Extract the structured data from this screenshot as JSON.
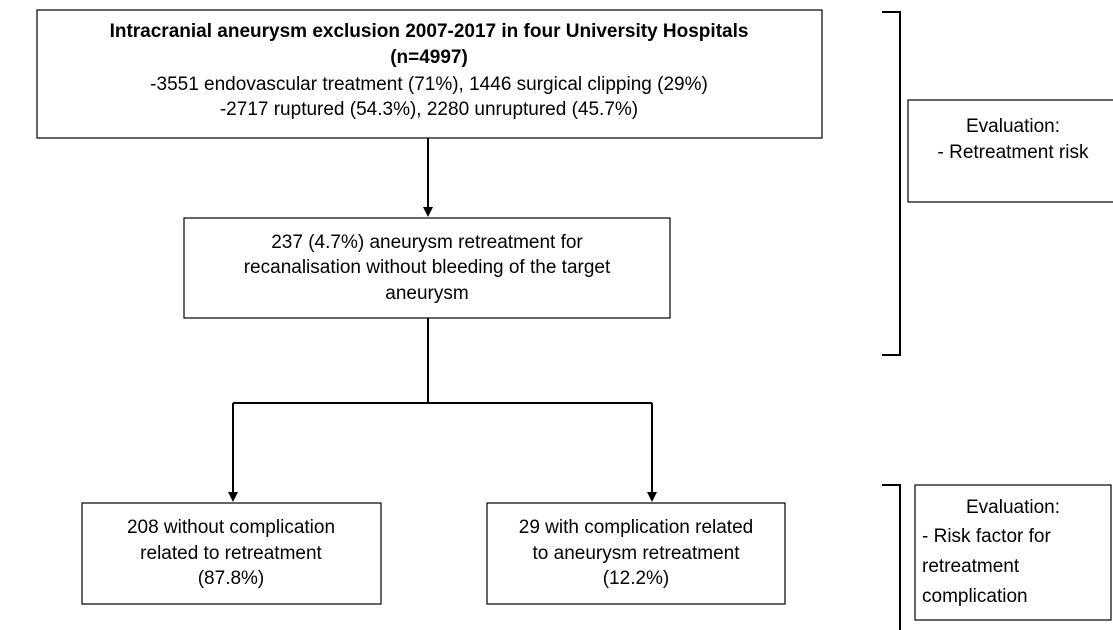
{
  "nodes": [
    {
      "title": [
        "Intracranial aneurysm exclusion 2007-2017 in four University Hospitals",
        "(n=4997)"
      ],
      "lines": [
        "-3551 endovascular treatment (71%), 1446 surgical clipping (29%)",
        "-2717 ruptured (54.3%), 2280 unruptured (45.7%)"
      ]
    },
    {
      "lines": [
        "237 (4.7%) aneurysm retreatment for",
        "recanalisation without bleeding of the target",
        "aneurysm"
      ]
    },
    {
      "lines": [
        "208 without complication",
        "related to retreatment",
        "(87.8%)"
      ]
    },
    {
      "lines": [
        "29 with complication related",
        "to aneurysm retreatment",
        "(12.2%)"
      ]
    }
  ],
  "evaluations": [
    {
      "heading": "Evaluation:",
      "lines": [
        "- Retreatment risk"
      ]
    },
    {
      "heading": "Evaluation:",
      "lines": [
        "- Risk factor for",
        "retreatment",
        "complication"
      ]
    }
  ]
}
